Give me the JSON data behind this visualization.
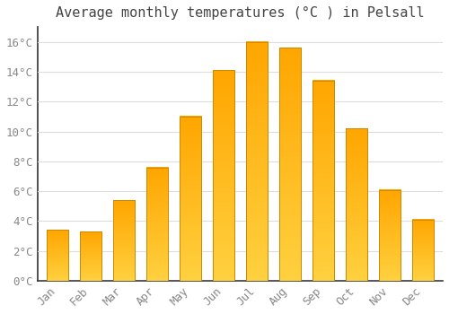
{
  "title": "Average monthly temperatures (°C ) in Pelsall",
  "months": [
    "Jan",
    "Feb",
    "Mar",
    "Apr",
    "May",
    "Jun",
    "Jul",
    "Aug",
    "Sep",
    "Oct",
    "Nov",
    "Dec"
  ],
  "temperatures": [
    3.4,
    3.3,
    5.4,
    7.6,
    11.0,
    14.1,
    16.0,
    15.6,
    13.4,
    10.2,
    6.1,
    4.1
  ],
  "bar_color_main": "#FFA500",
  "bar_color_light": "#FFD060",
  "bar_edge_color": "#CC8800",
  "background_color": "#FFFFFF",
  "grid_color": "#DDDDDD",
  "text_color": "#888888",
  "spine_color": "#333333",
  "ylim": [
    0,
    17
  ],
  "yticks": [
    0,
    2,
    4,
    6,
    8,
    10,
    12,
    14,
    16
  ],
  "title_fontsize": 11,
  "tick_fontsize": 9,
  "font_family": "monospace"
}
